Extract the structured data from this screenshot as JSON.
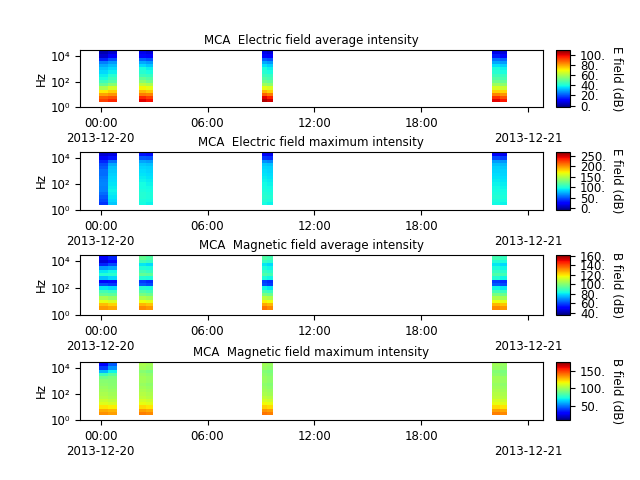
{
  "shared": {
    "xlim": [
      "2013-12-19 22:50",
      "2013-12-21 00:50"
    ],
    "xticks": [
      {
        "value": "2013-12-20 00:00",
        "label": "00:00\n2013-12-20"
      },
      {
        "value": "2013-12-20 06:00",
        "label": "06:00"
      },
      {
        "value": "2013-12-20 12:00",
        "label": "12:00"
      },
      {
        "value": "2013-12-20 18:00",
        "label": "18:00"
      },
      {
        "value": "2013-12-21 00:00",
        "label": "\n2013-12-21"
      }
    ],
    "log": "y",
    "ylim": [
      1,
      30000
    ],
    "yticks": [
      {
        "value": 1,
        "label": "10⁰"
      },
      {
        "value": 100,
        "label": "10²"
      },
      {
        "value": 10000,
        "label": "10⁴"
      }
    ],
    "y_label": "Hz",
    "freq_edges": [
      2.37,
      4.22,
      7.5,
      13.3,
      23.7,
      42.2,
      75,
      133,
      237,
      422,
      750,
      1334,
      2371,
      4217,
      7499,
      13335,
      23714
    ],
    "pass_time_edges": [
      [
        "2013-12-19 23:55",
        "2013-12-20 00:25",
        "2013-12-20 00:55"
      ],
      [
        "2013-12-20 02:10",
        "2013-12-20 02:32",
        "2013-12-20 02:55"
      ],
      [
        "2013-12-20 09:05",
        "2013-12-20 09:22",
        "2013-12-20 09:40"
      ],
      [
        "2013-12-20 22:00",
        "2013-12-20 22:25",
        "2013-12-20 22:50"
      ]
    ],
    "grid": false
  },
  "chart_data": [
    {
      "type": "heatmap",
      "title": "MCA  Electric field average intensity",
      "colorbar_label": "E field (dB)",
      "colorbar_range": [
        -3,
        110
      ],
      "colorbar_ticks": [
        {
          "value": 0,
          "label": "0."
        },
        {
          "value": 20,
          "label": "20."
        },
        {
          "value": 40,
          "label": "40."
        },
        {
          "value": 60,
          "label": "60."
        },
        {
          "value": 80,
          "label": "80."
        },
        {
          "value": 100,
          "label": "100."
        }
      ],
      "cells": [
        [
          [
            92,
            88,
            80,
            72,
            60,
            50,
            45,
            40,
            38,
            35,
            33,
            30,
            25,
            15,
            5,
            2
          ],
          [
            95,
            90,
            82,
            75,
            65,
            55,
            48,
            45,
            42,
            38,
            35,
            32,
            28,
            20,
            10,
            5
          ]
        ],
        [
          [
            100,
            95,
            85,
            78,
            70,
            62,
            55,
            50,
            45,
            42,
            40,
            35,
            30,
            22,
            12,
            8
          ],
          [
            98,
            92,
            84,
            76,
            68,
            60,
            52,
            48,
            44,
            40,
            38,
            33,
            28,
            20,
            10,
            6
          ]
        ],
        [
          [
            105,
            100,
            88,
            78,
            68,
            58,
            52,
            48,
            45,
            42,
            40,
            36,
            30,
            22,
            12,
            8
          ],
          [
            102,
            96,
            85,
            75,
            66,
            56,
            50,
            46,
            44,
            40,
            38,
            34,
            28,
            20,
            10,
            6
          ]
        ],
        [
          [
            100,
            94,
            84,
            75,
            66,
            58,
            52,
            48,
            45,
            42,
            40,
            36,
            30,
            24,
            14,
            8
          ],
          [
            97,
            90,
            82,
            74,
            64,
            56,
            50,
            46,
            44,
            40,
            38,
            34,
            28,
            22,
            12,
            6
          ]
        ]
      ]
    },
    {
      "type": "heatmap",
      "title": "MCA  Electric field maximum intensity",
      "colorbar_label": "E field (dB)",
      "colorbar_range": [
        -10,
        270
      ],
      "colorbar_ticks": [
        {
          "value": 0,
          "label": "0."
        },
        {
          "value": 50,
          "label": "50."
        },
        {
          "value": 100,
          "label": "100."
        },
        {
          "value": 150,
          "label": "150."
        },
        {
          "value": 200,
          "label": "200."
        },
        {
          "value": 250,
          "label": "250."
        }
      ],
      "cells": [
        [
          [
            40,
            45,
            50,
            55,
            60,
            60,
            62,
            60,
            58,
            55,
            55,
            50,
            45,
            35,
            20,
            10
          ],
          [
            80,
            85,
            88,
            90,
            92,
            90,
            88,
            86,
            85,
            82,
            80,
            78,
            72,
            55,
            30,
            15
          ]
        ],
        [
          [
            95,
            98,
            100,
            100,
            98,
            96,
            95,
            92,
            90,
            88,
            86,
            84,
            80,
            70,
            50,
            30
          ],
          [
            92,
            96,
            98,
            98,
            96,
            94,
            92,
            90,
            88,
            86,
            84,
            82,
            78,
            68,
            48,
            28
          ]
        ],
        [
          [
            95,
            100,
            102,
            100,
            98,
            96,
            94,
            92,
            90,
            88,
            86,
            84,
            80,
            65,
            40,
            20
          ],
          [
            92,
            98,
            100,
            98,
            96,
            94,
            92,
            90,
            88,
            86,
            84,
            82,
            78,
            62,
            38,
            18
          ]
        ],
        [
          [
            94,
            98,
            100,
            98,
            96,
            94,
            92,
            90,
            88,
            86,
            84,
            82,
            78,
            68,
            45,
            20
          ],
          [
            92,
            96,
            98,
            96,
            94,
            92,
            90,
            88,
            86,
            84,
            82,
            80,
            76,
            66,
            42,
            18
          ]
        ]
      ]
    },
    {
      "type": "heatmap",
      "title": "MCA  Magnetic field average intensity",
      "colorbar_label": "B field (dB)",
      "colorbar_range": [
        35,
        162
      ],
      "colorbar_ticks": [
        {
          "value": 40,
          "label": "40."
        },
        {
          "value": 60,
          "label": "60."
        },
        {
          "value": 80,
          "label": "80."
        },
        {
          "value": 100,
          "label": "100."
        },
        {
          "value": 120,
          "label": "120."
        },
        {
          "value": 140,
          "label": "140."
        },
        {
          "value": 160,
          "label": "160."
        }
      ],
      "cells": [
        [
          [
            130,
            125,
            115,
            105,
            95,
            90,
            80,
            60,
            50,
            75,
            85,
            80,
            70,
            55,
            45,
            50
          ],
          [
            128,
            122,
            112,
            102,
            94,
            88,
            78,
            58,
            52,
            78,
            86,
            82,
            72,
            60,
            50,
            55
          ]
        ],
        [
          [
            132,
            126,
            116,
            106,
            98,
            92,
            85,
            62,
            58,
            85,
            95,
            90,
            85,
            80,
            90,
            95
          ],
          [
            130,
            124,
            114,
            104,
            96,
            90,
            84,
            60,
            56,
            84,
            94,
            88,
            84,
            78,
            88,
            92
          ]
        ],
        [
          [
            135,
            128,
            118,
            108,
            98,
            90,
            82,
            60,
            58,
            84,
            92,
            88,
            84,
            80,
            88,
            92
          ],
          [
            132,
            126,
            116,
            106,
            96,
            88,
            80,
            58,
            56,
            82,
            90,
            86,
            82,
            78,
            86,
            90
          ]
        ],
        [
          [
            132,
            126,
            116,
            106,
            98,
            90,
            82,
            62,
            58,
            85,
            92,
            88,
            84,
            80,
            85,
            90
          ],
          [
            130,
            124,
            114,
            104,
            96,
            88,
            80,
            60,
            56,
            82,
            90,
            86,
            82,
            78,
            84,
            88
          ]
        ]
      ]
    },
    {
      "type": "heatmap",
      "title": "MCA  Magnetic field maximum intensity",
      "colorbar_label": "B field (dB)",
      "colorbar_range": [
        10,
        175
      ],
      "colorbar_ticks": [
        {
          "value": 50,
          "label": "50."
        },
        {
          "value": 100,
          "label": "100."
        },
        {
          "value": 150,
          "label": "150."
        }
      ],
      "cells": [
        [
          [
            135,
            130,
            120,
            112,
            108,
            104,
            102,
            100,
            98,
            96,
            95,
            90,
            80,
            60,
            40,
            30
          ],
          [
            132,
            128,
            118,
            110,
            106,
            102,
            100,
            98,
            96,
            95,
            94,
            92,
            85,
            70,
            55,
            45
          ]
        ],
        [
          [
            138,
            132,
            122,
            114,
            110,
            106,
            104,
            102,
            100,
            98,
            100,
            100,
            98,
            95,
            100,
            102
          ],
          [
            136,
            130,
            120,
            112,
            108,
            104,
            102,
            100,
            98,
            96,
            98,
            98,
            96,
            92,
            98,
            100
          ]
        ],
        [
          [
            140,
            134,
            124,
            116,
            110,
            106,
            102,
            100,
            98,
            96,
            98,
            98,
            96,
            94,
            98,
            100
          ],
          [
            138,
            132,
            122,
            114,
            108,
            104,
            100,
            98,
            96,
            94,
            96,
            96,
            94,
            92,
            96,
            98
          ]
        ],
        [
          [
            138,
            132,
            122,
            114,
            110,
            106,
            104,
            102,
            100,
            98,
            100,
            100,
            96,
            94,
            98,
            100
          ],
          [
            136,
            130,
            120,
            112,
            108,
            104,
            102,
            100,
            98,
            96,
            98,
            98,
            94,
            92,
            96,
            98
          ]
        ]
      ]
    }
  ]
}
